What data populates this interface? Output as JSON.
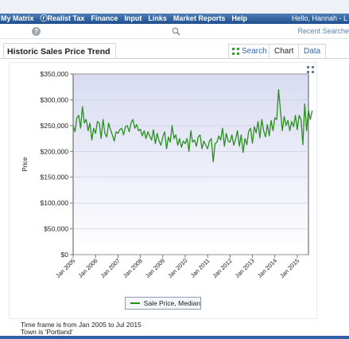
{
  "nav": {
    "items": [
      "My Matrix",
      "Realist Tax",
      "Finance",
      "Input",
      "Links",
      "Market Reports",
      "Help"
    ],
    "greeting": "Hello, Hannah - L"
  },
  "subbar": {
    "recent_label": "Recent Searche"
  },
  "panel": {
    "title": "Historic Sales Price Trend",
    "tabs": {
      "search": "Search",
      "chart": "Chart",
      "data": "Data"
    }
  },
  "footer": {
    "line1": "Time frame is from Jan 2005 to Jul 2015",
    "line2": "Town is 'Portland'"
  },
  "colors": {
    "accent": "#1f4f8c",
    "series": "#2a8f1f"
  },
  "chart_data": {
    "type": "line",
    "title": "",
    "xlabel": "",
    "ylabel": "Price",
    "ylim": [
      0,
      350000
    ],
    "y_ticks": [
      "$0",
      "$50,000",
      "$100,000",
      "$150,000",
      "$200,000",
      "$250,000",
      "$300,000",
      "$350,000"
    ],
    "x_ticks": [
      "Jan 2005",
      "Jan 2006",
      "Jan 2007",
      "Jan 2008",
      "Jan 2009",
      "Jan 2010",
      "Jan 2011",
      "Jan 2012",
      "Jan 2013",
      "Jan 2014",
      "Jan 2015"
    ],
    "legend": "bottom-center",
    "series": [
      {
        "name": "Sale Price, Median",
        "color": "#2a8f1f",
        "x_start": "2005-01",
        "interval": "month",
        "values": [
          250000,
          238000,
          265000,
          270000,
          245000,
          287000,
          255000,
          262000,
          240000,
          255000,
          222000,
          245000,
          235000,
          258000,
          255000,
          225000,
          262000,
          235000,
          228000,
          255000,
          242000,
          232000,
          220000,
          238000,
          235000,
          242000,
          245000,
          232000,
          248000,
          250000,
          238000,
          255000,
          262000,
          245000,
          252000,
          240000,
          243000,
          230000,
          240000,
          225000,
          238000,
          230000,
          222000,
          242000,
          215000,
          235000,
          220000,
          212000,
          228000,
          238000,
          205000,
          228000,
          218000,
          250000,
          225000,
          232000,
          212000,
          225000,
          208000,
          220000,
          215000,
          225000,
          200000,
          240000,
          218000,
          222000,
          210000,
          228000,
          232000,
          205000,
          220000,
          212000,
          205000,
          220000,
          225000,
          180000,
          215000,
          218000,
          230000,
          222000,
          245000,
          210000,
          235000,
          220000,
          218000,
          232000,
          212000,
          224000,
          240000,
          210000,
          232000,
          198000,
          225000,
          213000,
          239000,
          245000,
          216000,
          248000,
          236000,
          258000,
          226000,
          262000,
          240000,
          228000,
          252000,
          230000,
          260000,
          240000,
          265000,
          262000,
          320000,
          280000,
          240000,
          268000,
          250000,
          260000,
          240000,
          258000,
          248000,
          270000,
          242000,
          270000,
          262000,
          213000,
          292000,
          240000,
          280000,
          262000,
          279000
        ]
      }
    ]
  }
}
